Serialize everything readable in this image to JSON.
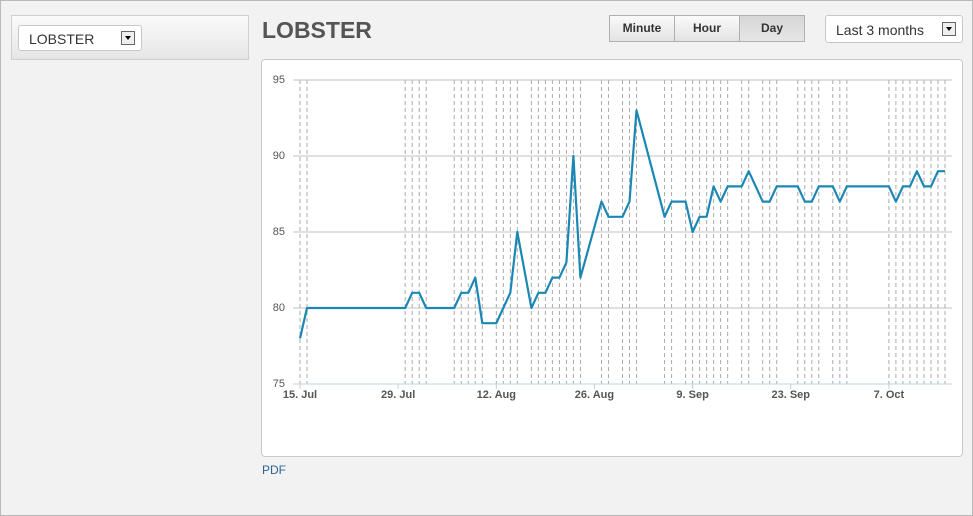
{
  "selector": {
    "value": "LOBSTER"
  },
  "toolbar": {
    "buttons": [
      "Minute",
      "Hour",
      "Day"
    ]
  },
  "range_select": {
    "value": "Last 3 months"
  },
  "pdf_link": "PDF",
  "chart_data": {
    "type": "line",
    "title": "LOBSTER",
    "color": "#1a87b4",
    "grid": true,
    "x": [
      "07-15",
      "07-16",
      "07-30",
      "07-31",
      "08-01",
      "08-02",
      "08-06",
      "08-07",
      "08-08",
      "08-09",
      "08-10",
      "08-12",
      "08-13",
      "08-14",
      "08-15",
      "08-17",
      "08-18",
      "08-19",
      "08-20",
      "08-21",
      "08-22",
      "08-23",
      "08-24",
      "08-27",
      "08-28",
      "08-30",
      "08-31",
      "09-01",
      "09-05",
      "09-06",
      "09-08",
      "09-09",
      "09-10",
      "09-11",
      "09-12",
      "09-13",
      "09-14",
      "09-16",
      "09-17",
      "09-19",
      "09-20",
      "09-21",
      "09-24",
      "09-25",
      "09-26",
      "09-27",
      "09-29",
      "09-30",
      "10-01",
      "10-07",
      "10-08",
      "10-09",
      "10-10",
      "10-11",
      "10-12",
      "10-13",
      "10-14",
      "10-15"
    ],
    "values": [
      78,
      80,
      80,
      81,
      81,
      80,
      80,
      81,
      81,
      82,
      79,
      79,
      80,
      81,
      85,
      80,
      81,
      81,
      82,
      82,
      83,
      90,
      82,
      87,
      86,
      86,
      87,
      93,
      86,
      87,
      87,
      85,
      86,
      86,
      88,
      87,
      88,
      88,
      89,
      87,
      87,
      88,
      88,
      87,
      87,
      88,
      88,
      87,
      88,
      88,
      87,
      88,
      88,
      89,
      88,
      88,
      89,
      89
    ],
    "xlim": [
      "07-14",
      "10-16"
    ],
    "xticks": [
      {
        "value": "07-15",
        "label": "15. Jul"
      },
      {
        "value": "07-29",
        "label": "29. Jul"
      },
      {
        "value": "08-12",
        "label": "12. Aug"
      },
      {
        "value": "08-26",
        "label": "26. Aug"
      },
      {
        "value": "09-09",
        "label": "9. Sep"
      },
      {
        "value": "09-23",
        "label": "23. Sep"
      },
      {
        "value": "10-07",
        "label": "7. Oct"
      }
    ],
    "ylim": [
      75,
      95
    ],
    "yticks": [
      75,
      80,
      85,
      90,
      95
    ]
  }
}
